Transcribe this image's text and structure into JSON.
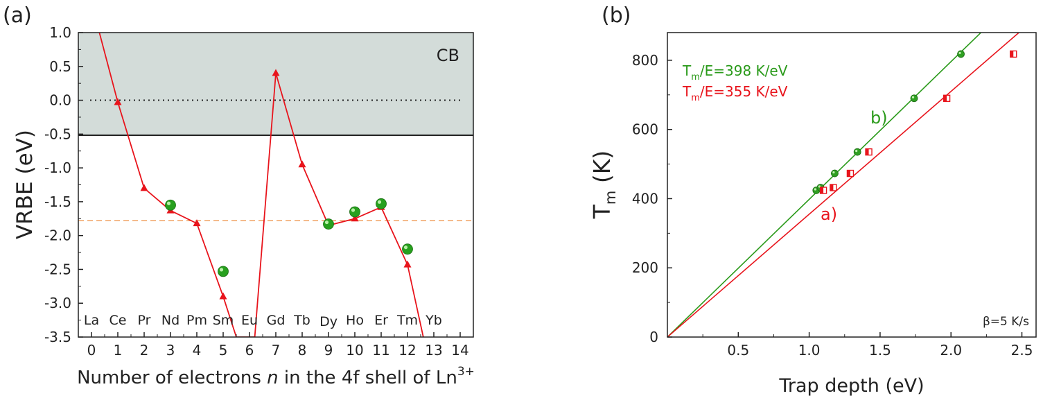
{
  "panel_a": {
    "label": "(a)",
    "band_label": "CB",
    "ylabel": "VRBE (eV)",
    "xlabel_main": "Number of electrons ",
    "xlabel_italic": "n",
    "xlabel_rest": " in the 4f shell of Ln",
    "xlabel_sup": "3+",
    "xticks": [
      "0",
      "1",
      "2",
      "3",
      "4",
      "5",
      "6",
      "7",
      "8",
      "9",
      "10",
      "11",
      "12",
      "13",
      "14"
    ],
    "yticks": [
      "1.0",
      "0.5",
      "0.0",
      "-0.5",
      "-1.0",
      "-1.5",
      "-2.0",
      "-2.5",
      "-3.0",
      "-3.5"
    ],
    "ions": [
      "La",
      "Ce",
      "Pr",
      "Nd",
      "Pm",
      "Sm",
      "Eu",
      "Gd",
      "Tb",
      "Dy",
      "Ho",
      "Er",
      "Tm",
      "Yb"
    ]
  },
  "panel_b": {
    "label": "(b)",
    "ylabel_main": "T",
    "ylabel_sub": "m",
    "ylabel_rest": " (K)",
    "xlabel": "Trap depth (eV)",
    "xticks": [
      "0.5",
      "1.0",
      "1.5",
      "2.0",
      "2.5"
    ],
    "yticks": [
      "0",
      "200",
      "400",
      "600",
      "800"
    ],
    "legend_green_pre": "T",
    "legend_green_sub": "m",
    "legend_green_rest": "/E=398 K/eV",
    "legend_red_pre": "T",
    "legend_red_sub": "m",
    "legend_red_rest": "/E=355 K/eV",
    "label_b": "b)",
    "label_a": "a)",
    "rate": "β=5 K/s"
  },
  "colors": {
    "red": "#e8141c",
    "green": "#2a9a1a",
    "band_fill": "#d3dcd9",
    "dash_orange": "#f0a060"
  },
  "chart_data": [
    {
      "type": "line",
      "xlim": [
        -0.5,
        14.5
      ],
      "ylim": [
        -3.5,
        1.0
      ],
      "band": {
        "name": "CB",
        "from": -0.5,
        "to": 1.0
      },
      "reference_lines": [
        {
          "y": 0.0,
          "style": "dotted"
        },
        {
          "y": -1.78,
          "style": "dashed"
        }
      ],
      "series": [
        {
          "marker": "triangle",
          "points": [
            [
              0.3,
              1.0
            ],
            [
              1,
              -0.03
            ],
            [
              2,
              -1.3
            ],
            [
              3,
              -1.63
            ],
            [
              4,
              -1.82
            ],
            [
              5,
              -2.9
            ],
            [
              5.5,
              -3.5
            ],
            [
              6.2,
              -3.5
            ],
            [
              7,
              0.4
            ],
            [
              8,
              -0.95
            ],
            [
              9,
              -1.85
            ],
            [
              10,
              -1.75
            ],
            [
              11,
              -1.58
            ],
            [
              12,
              -2.43
            ],
            [
              12.6,
              -3.5
            ]
          ]
        },
        {
          "marker": "sphere",
          "points": [
            [
              3,
              -1.55
            ],
            [
              5,
              -2.53
            ],
            [
              9,
              -1.83
            ],
            [
              10,
              -1.65
            ],
            [
              11,
              -1.53
            ],
            [
              12,
              -2.2
            ]
          ]
        }
      ]
    },
    {
      "type": "scatter",
      "xlim": [
        0,
        2.6
      ],
      "ylim": [
        0,
        880
      ],
      "series": [
        {
          "name": "b)",
          "marker": "circle",
          "fit_slope": 398,
          "points": [
            [
              1.05,
              424
            ],
            [
              1.08,
              432
            ],
            [
              1.18,
              473
            ],
            [
              1.34,
              535
            ],
            [
              1.74,
              690
            ],
            [
              2.07,
              818
            ]
          ]
        },
        {
          "name": "a)",
          "marker": "half-square",
          "fit_slope": 355,
          "points": [
            [
              1.1,
              424
            ],
            [
              1.17,
              432
            ],
            [
              1.29,
              473
            ],
            [
              1.42,
              535
            ],
            [
              1.97,
              690
            ],
            [
              2.44,
              818
            ]
          ]
        }
      ]
    }
  ]
}
